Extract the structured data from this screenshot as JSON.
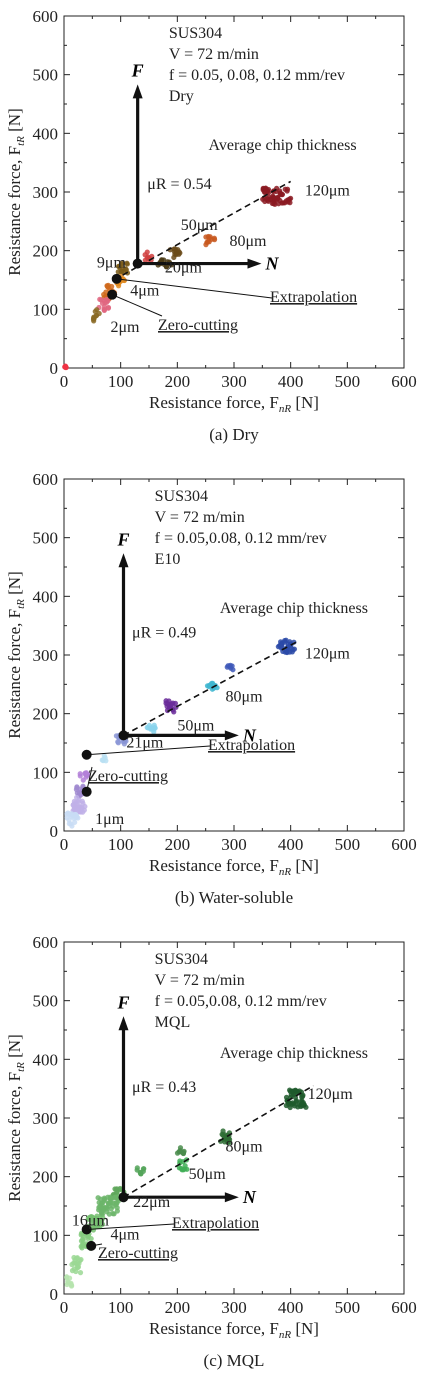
{
  "chart_data": [
    {
      "type": "scatter",
      "caption": "(a) Dry",
      "xlabel": "Resistance force, F",
      "xlabel_sub": "nR",
      "xlabel_unit": "[N]",
      "ylabel": "Resistance force, F",
      "ylabel_sub": "tR",
      "ylabel_unit": "[N]",
      "xlim": [
        0,
        600
      ],
      "ylim": [
        0,
        600
      ],
      "xticks": [
        "0",
        "100",
        "200",
        "300",
        "400",
        "500",
        "600"
      ],
      "yticks": [
        "0",
        "100",
        "200",
        "300",
        "400",
        "500",
        "600"
      ],
      "info": [
        "SUS304",
        "V = 72 m/min",
        "f = 0.05, 0.08, 0.12 mm/rev",
        "Dry"
      ],
      "heading": "Average chip thickness",
      "mu": "μR = 0.54",
      "mu_value": 0.54,
      "arrow_F": "F",
      "arrow_N": "N",
      "origin": [
        130,
        178
      ],
      "fit_line": [
        [
          88,
          150
        ],
        [
          400,
          318
        ]
      ],
      "extrapolation_point": [
        93,
        152
      ],
      "zero_cutting_point": [
        85,
        125
      ],
      "labels": [
        {
          "text": "120μm",
          "x": 425,
          "y": 294
        },
        {
          "text": "50μm",
          "x": 206,
          "y": 235
        },
        {
          "text": "80μm",
          "x": 292,
          "y": 208
        },
        {
          "text": "9μm",
          "x": 58,
          "y": 171
        },
        {
          "text": "20μm",
          "x": 178,
          "y": 163
        },
        {
          "text": "4μm",
          "x": 117,
          "y": 124
        },
        {
          "text": "2μm",
          "x": 82,
          "y": 61
        }
      ],
      "extrapolation_label": "Extrapolation",
      "zero_cutting_label": "Zero-cutting",
      "clusters": [
        {
          "x": 375,
          "y": 293,
          "w": 25,
          "h": 14,
          "color": "#8b1a22"
        },
        {
          "x": 258,
          "y": 218,
          "w": 8,
          "h": 8,
          "color": "#c8581e"
        },
        {
          "x": 196,
          "y": 196,
          "w": 10,
          "h": 8,
          "color": "#6b4b1a"
        },
        {
          "x": 178,
          "y": 178,
          "w": 12,
          "h": 7,
          "color": "#4a3a14"
        },
        {
          "x": 150,
          "y": 190,
          "w": 7,
          "h": 8,
          "color": "#d04040"
        },
        {
          "x": 105,
          "y": 170,
          "w": 10,
          "h": 9,
          "color": "#7a5a18"
        },
        {
          "x": 100,
          "y": 148,
          "w": 8,
          "h": 10,
          "color": "#e08a20"
        },
        {
          "x": 80,
          "y": 130,
          "w": 10,
          "h": 12,
          "color": "#d06a1c"
        },
        {
          "x": 70,
          "y": 108,
          "w": 9,
          "h": 10,
          "color": "#e06680"
        },
        {
          "x": 58,
          "y": 90,
          "w": 6,
          "h": 12,
          "color": "#8a6a24"
        },
        {
          "x": 3,
          "y": 2,
          "w": 2,
          "h": 2,
          "color": "#ee3344"
        }
      ]
    },
    {
      "type": "scatter",
      "caption": "(b) Water-soluble",
      "xlabel": "Resistance force, F",
      "xlabel_sub": "nR",
      "xlabel_unit": "[N]",
      "ylabel": "Resistance force, F",
      "ylabel_sub": "tR",
      "ylabel_unit": "[N]",
      "xlim": [
        0,
        600
      ],
      "ylim": [
        0,
        600
      ],
      "xticks": [
        "0",
        "100",
        "200",
        "300",
        "400",
        "500",
        "600"
      ],
      "yticks": [
        "0",
        "100",
        "200",
        "300",
        "400",
        "500",
        "600"
      ],
      "info": [
        "SUS304",
        "V = 72 m/min",
        "f = 0.05,0.08, 0.12 mm/rev",
        "E10"
      ],
      "heading": "Average chip thickness",
      "mu": "μR = 0.49",
      "mu_value": 0.49,
      "arrow_F": "F",
      "arrow_N": "N",
      "origin": [
        105,
        163
      ],
      "fit_line": [
        [
          105,
          163
        ],
        [
          410,
          322
        ]
      ],
      "extrapolation_point": [
        40,
        130
      ],
      "zero_cutting_point": [
        40,
        67
      ],
      "labels": [
        {
          "text": "120μm",
          "x": 425,
          "y": 294
        },
        {
          "text": "80μm",
          "x": 285,
          "y": 221
        },
        {
          "text": "50μm",
          "x": 200,
          "y": 171
        },
        {
          "text": "21μm",
          "x": 110,
          "y": 142
        },
        {
          "text": "1μm",
          "x": 55,
          "y": 12
        }
      ],
      "extrapolation_label": "Extrapolation",
      "zero_cutting_label": "Zero-cutting",
      "clusters": [
        {
          "x": 395,
          "y": 315,
          "w": 17,
          "h": 11,
          "color": "#2c4aa8"
        },
        {
          "x": 293,
          "y": 278,
          "w": 6,
          "h": 7,
          "color": "#3e58b8"
        },
        {
          "x": 262,
          "y": 247,
          "w": 9,
          "h": 7,
          "color": "#3fb6d0"
        },
        {
          "x": 190,
          "y": 213,
          "w": 11,
          "h": 10,
          "color": "#6a2c9a"
        },
        {
          "x": 155,
          "y": 175,
          "w": 9,
          "h": 7,
          "color": "#8ad4ec"
        },
        {
          "x": 100,
          "y": 155,
          "w": 10,
          "h": 8,
          "color": "#8a95d6"
        },
        {
          "x": 70,
          "y": 125,
          "w": 6,
          "h": 6,
          "color": "#b9dff2"
        },
        {
          "x": 35,
          "y": 93,
          "w": 8,
          "h": 8,
          "color": "#b380d8"
        },
        {
          "x": 30,
          "y": 70,
          "w": 9,
          "h": 12,
          "color": "#a08ad0"
        },
        {
          "x": 25,
          "y": 45,
          "w": 12,
          "h": 14,
          "color": "#c0b0e8"
        },
        {
          "x": 15,
          "y": 20,
          "w": 10,
          "h": 12,
          "color": "#c8dcf4"
        }
      ]
    },
    {
      "type": "scatter",
      "caption": "(c) MQL",
      "xlabel": "Resistance force, F",
      "xlabel_sub": "nR",
      "xlabel_unit": "[N]",
      "ylabel": "Resistance force, F",
      "ylabel_sub": "tR",
      "ylabel_unit": "[N]",
      "xlim": [
        0,
        600
      ],
      "ylim": [
        0,
        600
      ],
      "xticks": [
        "0",
        "100",
        "200",
        "300",
        "400",
        "500",
        "600"
      ],
      "yticks": [
        "0",
        "100",
        "200",
        "300",
        "400",
        "500",
        "600"
      ],
      "info": [
        "SUS304",
        "V = 72 m/min",
        "f = 0.05,0.08, 0.12 mm/rev",
        "MQL"
      ],
      "heading": "Average chip thickness",
      "mu": "μR = 0.43",
      "mu_value": 0.43,
      "arrow_F": "F",
      "arrow_N": "N",
      "origin": [
        105,
        165
      ],
      "fit_line": [
        [
          105,
          165
        ],
        [
          440,
          355
        ]
      ],
      "extrapolation_point": [
        40,
        110
      ],
      "zero_cutting_point": [
        48,
        82
      ],
      "labels": [
        {
          "text": "120μm",
          "x": 430,
          "y": 332
        },
        {
          "text": "80μm",
          "x": 285,
          "y": 243
        },
        {
          "text": "50μm",
          "x": 220,
          "y": 196
        },
        {
          "text": "16μm",
          "x": 14,
          "y": 117
        },
        {
          "text": "22μm",
          "x": 122,
          "y": 148
        },
        {
          "text": "4μm",
          "x": 82,
          "y": 93
        }
      ],
      "extrapolation_label": "Extrapolation",
      "zero_cutting_label": "Zero-cutting",
      "clusters": [
        {
          "x": 410,
          "y": 333,
          "w": 18,
          "h": 16,
          "color": "#1f5a2c"
        },
        {
          "x": 283,
          "y": 270,
          "w": 10,
          "h": 12,
          "color": "#2e6d34"
        },
        {
          "x": 205,
          "y": 245,
          "w": 7,
          "h": 8,
          "color": "#4a8c4c"
        },
        {
          "x": 210,
          "y": 220,
          "w": 7,
          "h": 9,
          "color": "#3fae56"
        },
        {
          "x": 135,
          "y": 205,
          "w": 6,
          "h": 10,
          "color": "#55a45a"
        },
        {
          "x": 95,
          "y": 170,
          "w": 14,
          "h": 10,
          "color": "#5fa75c"
        },
        {
          "x": 78,
          "y": 150,
          "w": 18,
          "h": 16,
          "color": "#6cb56a"
        },
        {
          "x": 55,
          "y": 120,
          "w": 14,
          "h": 14,
          "color": "#76c070"
        },
        {
          "x": 40,
          "y": 90,
          "w": 10,
          "h": 14,
          "color": "#86cd80"
        },
        {
          "x": 22,
          "y": 50,
          "w": 8,
          "h": 14,
          "color": "#9bd894"
        },
        {
          "x": 10,
          "y": 20,
          "w": 6,
          "h": 10,
          "color": "#b6e4ae"
        }
      ]
    }
  ]
}
